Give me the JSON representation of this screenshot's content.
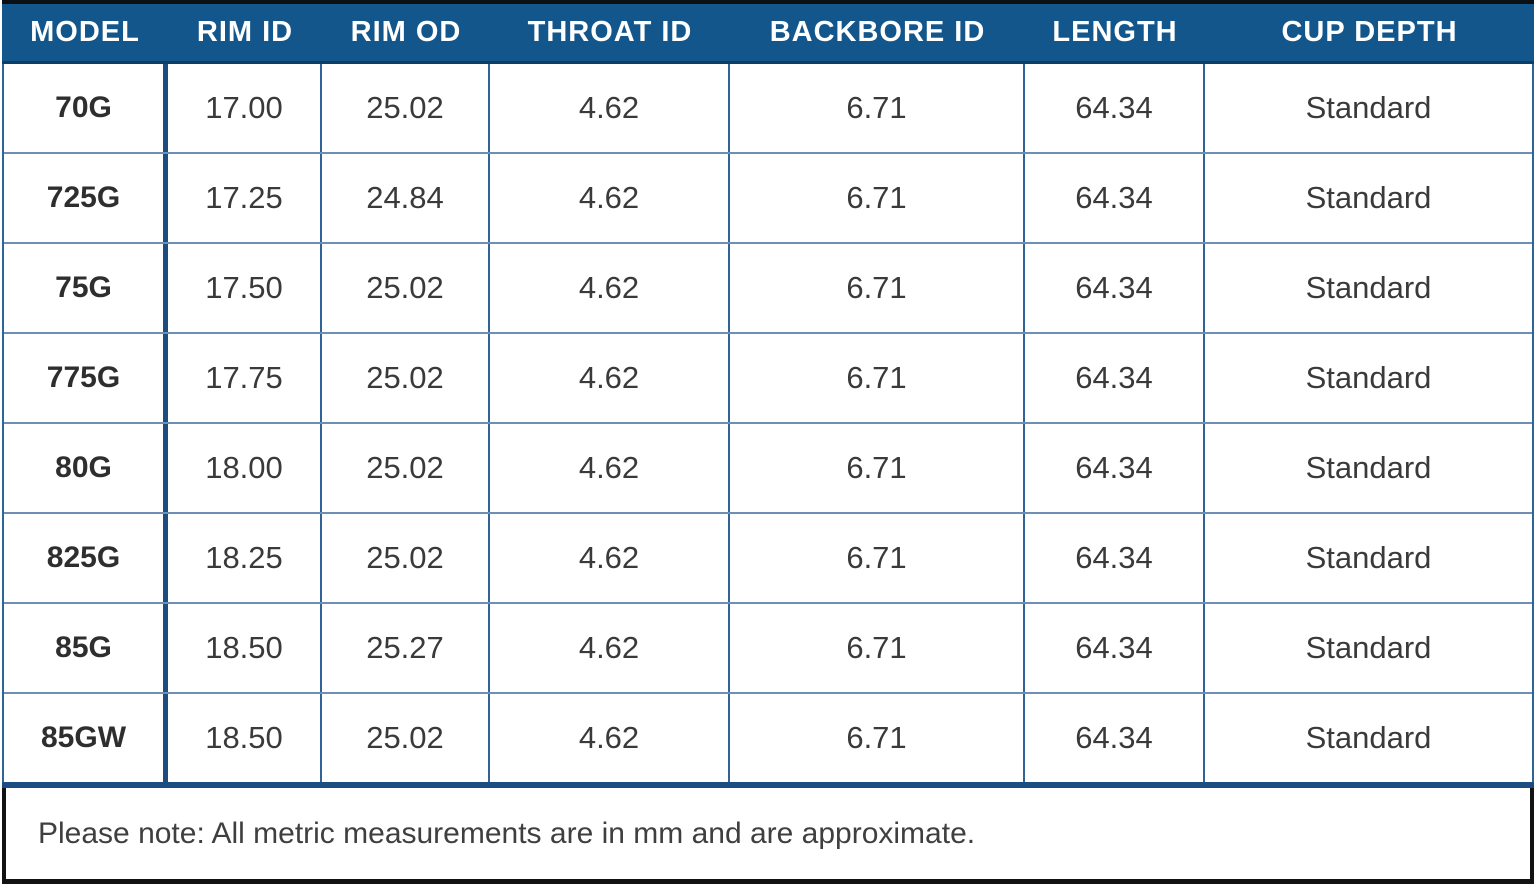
{
  "chart_data": {
    "type": "table",
    "columns": [
      "MODEL",
      "RIM ID",
      "RIM OD",
      "THROAT ID",
      "BACKBORE ID",
      "LENGTH",
      "CUP DEPTH"
    ],
    "rows": [
      [
        "70G",
        "17.00",
        "25.02",
        "4.62",
        "6.71",
        "64.34",
        "Standard"
      ],
      [
        "725G",
        "17.25",
        "24.84",
        "4.62",
        "6.71",
        "64.34",
        "Standard"
      ],
      [
        "75G",
        "17.50",
        "25.02",
        "4.62",
        "6.71",
        "64.34",
        "Standard"
      ],
      [
        "775G",
        "17.75",
        "25.02",
        "4.62",
        "6.71",
        "64.34",
        "Standard"
      ],
      [
        "80G",
        "18.00",
        "25.02",
        "4.62",
        "6.71",
        "64.34",
        "Standard"
      ],
      [
        "825G",
        "18.25",
        "25.02",
        "4.62",
        "6.71",
        "64.34",
        "Standard"
      ],
      [
        "85G",
        "18.50",
        "25.27",
        "4.62",
        "6.71",
        "64.34",
        "Standard"
      ],
      [
        "85GW",
        "18.50",
        "25.02",
        "4.62",
        "6.71",
        "64.34",
        "Standard"
      ]
    ],
    "units": "mm",
    "note": "Please note: All metric measurements are in mm and are approximate.",
    "layout_hints": {
      "header_position": "top",
      "grid": "on",
      "model_column_emphasis": "bold"
    }
  },
  "footer": {
    "note": "Please note: All metric measurements are in mm and are approximate."
  },
  "colors": {
    "header_bg": "#13568B",
    "header_text": "#ffffff",
    "thick_divider_blue": "#1c4d80",
    "vertical_grid_blue": "#2f6498",
    "horizontal_grid_blue": "#6e8fb4",
    "outer_border_black": "#121212",
    "cell_text": "#3a3a3a"
  }
}
